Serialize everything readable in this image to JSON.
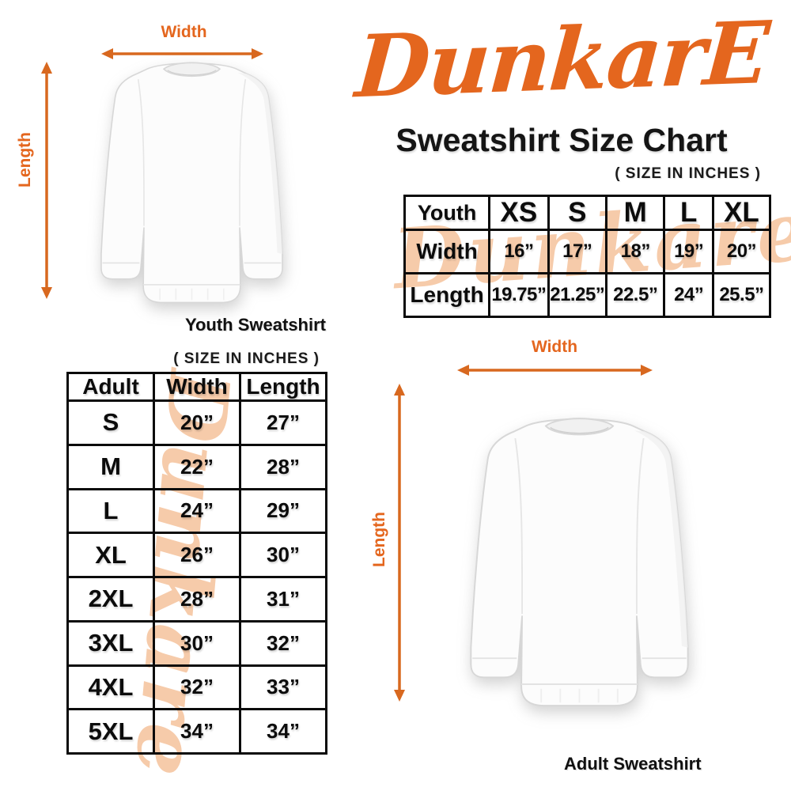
{
  "colors": {
    "accent_orange": "#E4661E",
    "arrow_orange": "#D8681F",
    "watermark_peach": "#F6CBAA",
    "table_border": "#0B0B0B",
    "ink": "#141414"
  },
  "brand": {
    "logo_text": "DunkarE",
    "watermark_text": "Dunkare"
  },
  "header": {
    "title": "Sweatshirt Size Chart",
    "size_note": "( SIZE IN INCHES )"
  },
  "figures": {
    "youth": {
      "width_label": "Width",
      "length_label": "Length",
      "caption": "Youth Sweatshirt"
    },
    "adult": {
      "width_label": "Width",
      "length_label": "Length",
      "caption": "Adult Sweatshirt"
    }
  },
  "chart_data": [
    {
      "type": "table",
      "name": "youth_sweatshirt_sizes",
      "units": "inches",
      "header": [
        "Youth",
        "XS",
        "S",
        "M",
        "L",
        "XL"
      ],
      "rows": [
        [
          "Width",
          "16”",
          "17”",
          "18”",
          "19”",
          "20”"
        ],
        [
          "Length",
          "19.75”",
          "21.25”",
          "22.5”",
          "24”",
          "25.5”"
        ]
      ]
    },
    {
      "type": "table",
      "name": "adult_sweatshirt_sizes",
      "units": "inches",
      "size_note": "( SIZE IN INCHES )",
      "header": [
        "Adult",
        "Width",
        "Length"
      ],
      "rows": [
        [
          "S",
          "20”",
          "27”"
        ],
        [
          "M",
          "22”",
          "28”"
        ],
        [
          "L",
          "24”",
          "29”"
        ],
        [
          "XL",
          "26”",
          "30”"
        ],
        [
          "2XL",
          "28”",
          "31”"
        ],
        [
          "3XL",
          "30”",
          "32”"
        ],
        [
          "4XL",
          "32”",
          "33”"
        ],
        [
          "5XL",
          "34”",
          "34”"
        ]
      ]
    }
  ]
}
